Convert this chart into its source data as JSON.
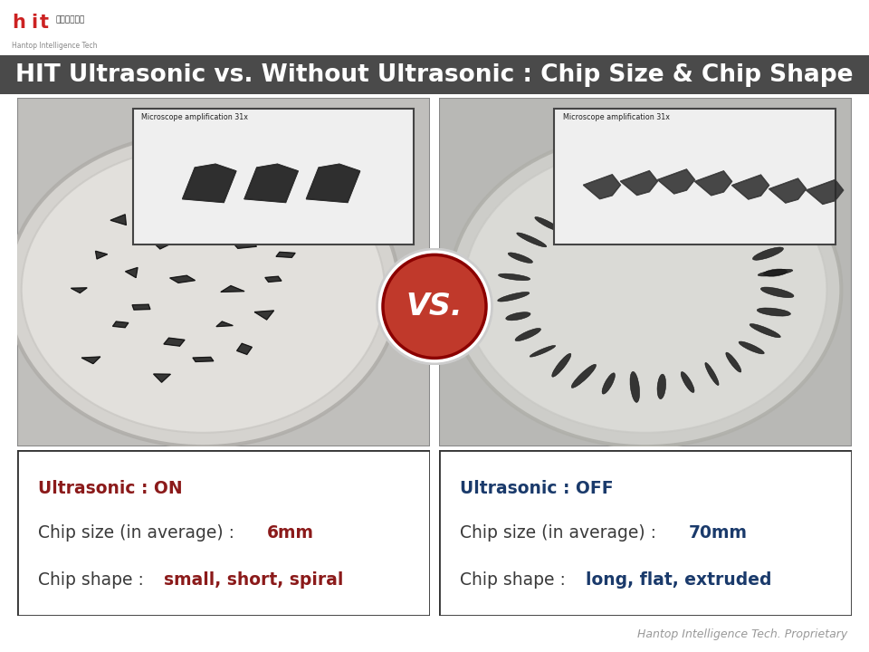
{
  "title": "HIT Ultrasonic vs. Without Ultrasonic : Chip Size & Chip Shape",
  "title_bg_color": "#4a4a4a",
  "title_text_color": "#ffffff",
  "title_fontsize": 19,
  "vs_text": "VS.",
  "vs_bg_color": "#c0392b",
  "vs_text_color": "#ffffff",
  "microscope_label": "Microscope amplification 31x",
  "left_panel": {
    "line1_label": "Ultrasonic : ",
    "line1_value": "ON",
    "line1_color": "#8b1a1a",
    "line2_label": "Chip size (in average) : ",
    "line2_value": "6mm",
    "line2_label_color": "#3a3a3a",
    "line2_value_color": "#8b1a1a",
    "line3_label": "Chip shape : ",
    "line3_value": "small, short, spiral",
    "line3_label_color": "#3a3a3a",
    "line3_value_color": "#8b1a1a"
  },
  "right_panel": {
    "line1_label": "Ultrasonic : ",
    "line1_value": "OFF",
    "line1_color": "#1a3a6b",
    "line2_label": "Chip size (in average) : ",
    "line2_value": "70mm",
    "line2_label_color": "#3a3a3a",
    "line2_value_color": "#1a3a6b",
    "line3_label": "Chip shape : ",
    "line3_value": "long, flat, extruded",
    "line3_label_color": "#3a3a3a",
    "line3_value_color": "#1a3a6b"
  },
  "footer_text": "Hantop Intelligence Tech. Proprietary",
  "footer_color": "#999999"
}
